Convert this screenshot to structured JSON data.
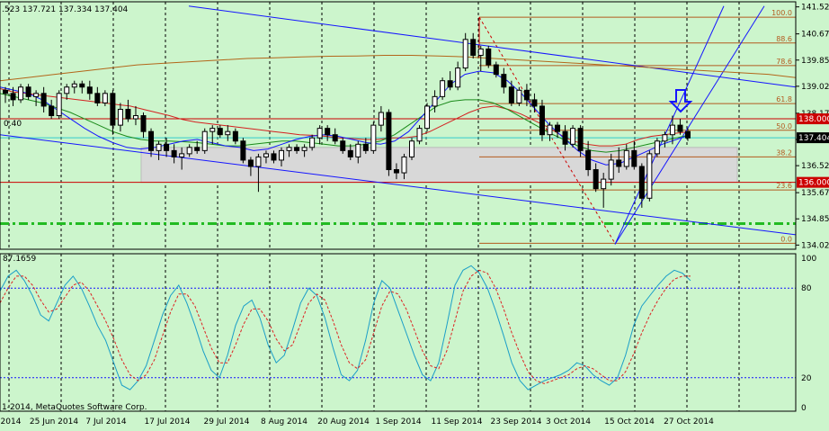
{
  "header": {
    "ohlc_text": ".523 137.721 137.334 137.404",
    "sub_label": "0.40"
  },
  "footer": {
    "copyright": "1-2014, MetaQuotes Software Corp.",
    "osc_value": "87.1659"
  },
  "colors": {
    "background": "#ccf5cc",
    "bull_candle": "#ffffff",
    "bear_candle": "#000000",
    "ma_red": "#d42020",
    "ma_green": "#1a8a1a",
    "ma_blue": "#1515ff",
    "ma_brown": "#b3661a",
    "channel_blue": "#1515ff",
    "fibo": "#b35a1f",
    "level_red": "#cc0000",
    "dash_green": "#22bb22",
    "stoch_main": "#1a9ec8",
    "stoch_signal": "#dd2222",
    "zone": "#d8d8d8",
    "arrow": "#1515ff"
  },
  "chart_data": [
    {
      "type": "candlestick",
      "symbol_note": "price panel",
      "x_ticks": [
        "2014",
        "25 Jun 2014",
        "7 Jul 2014",
        "17 Jul 2014",
        "29 Jul 2014",
        "8 Aug 2014",
        "20 Aug 2014",
        "1 Sep 2014",
        "11 Sep 2014",
        "23 Sep 2014",
        "3 Oct 2014",
        "15 Oct 2014",
        "27 Oct 2014"
      ],
      "y_ticks": [
        141.525,
        140.675,
        139.85,
        139.025,
        138.175,
        137.35,
        136.525,
        135.675,
        134.85,
        134.025
      ],
      "ylim": [
        133.95,
        141.6
      ],
      "current_price": 137.404,
      "key_levels": [
        138.0,
        136.0
      ],
      "support_dashed": 134.7,
      "fibonacci": {
        "levels": [
          "100.0",
          "88.6",
          "78.6",
          "61.8",
          "50.0",
          "38.2",
          "23.6",
          "0.0"
        ],
        "ratios": [
          1.0,
          0.886,
          0.786,
          0.618,
          0.5,
          0.382,
          0.236,
          0.0
        ],
        "high": 141.2,
        "low": 134.08
      },
      "zone": [
        136.0,
        137.1
      ],
      "candles": [
        [
          138.9,
          139.0,
          138.5,
          138.8
        ],
        [
          138.8,
          139.0,
          138.4,
          138.6
        ],
        [
          138.6,
          139.1,
          138.5,
          139.0
        ],
        [
          139.0,
          139.1,
          138.6,
          138.7
        ],
        [
          138.7,
          138.9,
          138.4,
          138.8
        ],
        [
          138.8,
          139.0,
          138.2,
          138.4
        ],
        [
          138.4,
          138.6,
          138.0,
          138.1
        ],
        [
          138.1,
          138.9,
          138.0,
          138.8
        ],
        [
          138.8,
          139.1,
          138.6,
          139.0
        ],
        [
          139.0,
          139.2,
          138.8,
          139.1
        ],
        [
          139.1,
          139.2,
          138.8,
          139.0
        ],
        [
          139.0,
          139.2,
          138.6,
          138.8
        ],
        [
          138.8,
          139.0,
          138.4,
          138.5
        ],
        [
          138.5,
          138.9,
          138.4,
          138.8
        ],
        [
          138.8,
          138.9,
          137.5,
          137.8
        ],
        [
          137.8,
          138.5,
          137.6,
          138.3
        ],
        [
          138.3,
          138.6,
          137.9,
          138.0
        ],
        [
          138.0,
          138.4,
          137.8,
          138.1
        ],
        [
          138.1,
          138.2,
          137.4,
          137.6
        ],
        [
          137.6,
          137.7,
          136.8,
          137.0
        ],
        [
          137.0,
          137.3,
          136.7,
          137.2
        ],
        [
          137.2,
          137.4,
          136.8,
          137.0
        ],
        [
          137.0,
          137.2,
          136.6,
          136.8
        ],
        [
          136.8,
          137.1,
          136.4,
          136.9
        ],
        [
          136.9,
          137.2,
          136.8,
          137.1
        ],
        [
          137.1,
          137.3,
          136.9,
          137.0
        ],
        [
          137.0,
          137.7,
          136.9,
          137.6
        ],
        [
          137.6,
          137.8,
          137.2,
          137.7
        ],
        [
          137.7,
          137.8,
          137.4,
          137.5
        ],
        [
          137.5,
          137.8,
          137.3,
          137.6
        ],
        [
          137.6,
          137.7,
          137.2,
          137.3
        ],
        [
          137.3,
          137.4,
          136.6,
          136.7
        ],
        [
          136.7,
          136.8,
          136.2,
          136.5
        ],
        [
          136.5,
          136.9,
          135.7,
          136.8
        ],
        [
          136.8,
          137.0,
          136.6,
          136.9
        ],
        [
          136.9,
          137.0,
          136.6,
          136.7
        ],
        [
          136.7,
          137.1,
          136.5,
          137.0
        ],
        [
          137.0,
          137.2,
          136.8,
          137.1
        ],
        [
          137.1,
          137.2,
          136.9,
          137.0
        ],
        [
          137.0,
          137.2,
          136.8,
          137.1
        ],
        [
          137.1,
          137.5,
          137.0,
          137.4
        ],
        [
          137.4,
          137.8,
          137.2,
          137.7
        ],
        [
          137.7,
          137.8,
          137.3,
          137.5
        ],
        [
          137.5,
          137.7,
          137.2,
          137.3
        ],
        [
          137.3,
          137.4,
          136.9,
          137.0
        ],
        [
          137.0,
          137.2,
          136.7,
          136.8
        ],
        [
          136.8,
          137.3,
          136.6,
          137.2
        ],
        [
          137.2,
          137.4,
          136.9,
          137.0
        ],
        [
          137.0,
          137.9,
          136.9,
          137.8
        ],
        [
          137.8,
          138.4,
          137.6,
          138.2
        ],
        [
          138.2,
          138.3,
          136.2,
          136.4
        ],
        [
          136.4,
          136.6,
          136.1,
          136.3
        ],
        [
          136.3,
          136.9,
          136.1,
          136.8
        ],
        [
          136.8,
          137.4,
          136.7,
          137.3
        ],
        [
          137.3,
          137.8,
          137.2,
          137.7
        ],
        [
          137.7,
          138.5,
          137.6,
          138.4
        ],
        [
          138.4,
          138.9,
          138.2,
          138.7
        ],
        [
          138.7,
          139.3,
          138.6,
          139.2
        ],
        [
          139.2,
          139.5,
          138.9,
          139.0
        ],
        [
          139.0,
          139.8,
          138.9,
          139.6
        ],
        [
          139.6,
          140.7,
          139.5,
          140.5
        ],
        [
          140.5,
          140.7,
          139.9,
          140.0
        ],
        [
          140.0,
          140.3,
          139.5,
          140.2
        ],
        [
          140.2,
          140.3,
          139.6,
          139.7
        ],
        [
          139.7,
          139.8,
          139.3,
          139.4
        ],
        [
          139.4,
          139.6,
          138.8,
          139.0
        ],
        [
          139.0,
          139.2,
          138.4,
          138.5
        ],
        [
          138.5,
          139.0,
          138.4,
          138.9
        ],
        [
          138.9,
          139.1,
          138.4,
          138.6
        ],
        [
          138.6,
          138.8,
          138.2,
          138.4
        ],
        [
          138.4,
          138.6,
          137.3,
          137.5
        ],
        [
          137.5,
          137.9,
          137.3,
          137.8
        ],
        [
          137.8,
          137.9,
          137.4,
          137.6
        ],
        [
          137.6,
          137.8,
          137.0,
          137.2
        ],
        [
          137.2,
          137.8,
          137.1,
          137.7
        ],
        [
          137.7,
          137.8,
          136.8,
          137.0
        ],
        [
          137.0,
          137.3,
          136.2,
          136.4
        ],
        [
          136.4,
          136.6,
          135.7,
          135.8
        ],
        [
          135.8,
          136.3,
          135.2,
          136.1
        ],
        [
          136.1,
          136.9,
          135.9,
          136.7
        ],
        [
          136.7,
          137.1,
          136.3,
          136.5
        ],
        [
          136.5,
          137.2,
          136.4,
          137.0
        ],
        [
          137.0,
          137.3,
          136.4,
          136.5
        ],
        [
          136.5,
          136.6,
          135.2,
          135.5
        ],
        [
          135.5,
          137.0,
          135.4,
          136.9
        ],
        [
          136.9,
          137.4,
          136.8,
          137.3
        ],
        [
          137.3,
          137.6,
          137.1,
          137.5
        ],
        [
          137.5,
          138.1,
          137.2,
          137.8
        ],
        [
          137.8,
          138.0,
          137.5,
          137.6
        ],
        [
          137.6,
          137.7,
          137.3,
          137.4
        ]
      ],
      "moving_averages": {
        "red": [
          138.95,
          138.85,
          138.8,
          138.75,
          138.7,
          138.65,
          138.6,
          138.55,
          138.5,
          138.45,
          138.4,
          138.3,
          138.2,
          138.1,
          137.98,
          137.9,
          137.85,
          137.8,
          137.75,
          137.7,
          137.65,
          137.6,
          137.55,
          137.5,
          137.48,
          137.45,
          137.4,
          137.38,
          137.35,
          137.35,
          137.4,
          137.4,
          137.45,
          137.6,
          137.8,
          138.0,
          138.2,
          138.35,
          138.4,
          138.3,
          138.15,
          137.95,
          137.75,
          137.5,
          137.3,
          137.2,
          137.15,
          137.15,
          137.2,
          137.35,
          137.45,
          137.5,
          137.55,
          137.6
        ],
        "green": [
          138.8,
          138.7,
          138.6,
          138.5,
          138.35,
          138.2,
          138.0,
          137.8,
          137.6,
          137.45,
          137.35,
          137.3,
          137.3,
          137.28,
          137.25,
          137.2,
          137.15,
          137.15,
          137.2,
          137.25,
          137.3,
          137.3,
          137.25,
          137.2,
          137.15,
          137.15,
          137.2,
          137.3,
          137.5,
          137.8,
          138.1,
          138.4,
          138.55,
          138.6,
          138.6,
          138.5,
          138.3,
          138.05,
          137.8,
          137.55,
          137.35,
          137.15,
          137.0,
          136.95,
          137.0,
          137.1,
          137.2,
          137.3,
          137.4,
          137.5
        ],
        "blue": [
          139.0,
          138.9,
          138.8,
          138.6,
          138.3,
          138.0,
          137.7,
          137.45,
          137.25,
          137.1,
          137.05,
          137.1,
          137.2,
          137.3,
          137.35,
          137.25,
          137.15,
          137.1,
          137.0,
          137.05,
          137.2,
          137.35,
          137.45,
          137.5,
          137.45,
          137.35,
          137.25,
          137.2,
          137.3,
          137.6,
          138.1,
          138.6,
          139.1,
          139.4,
          139.5,
          139.45,
          139.2,
          138.8,
          138.3,
          137.8,
          137.4,
          137.0,
          136.7,
          136.55,
          136.6,
          136.8,
          137.0,
          137.2,
          137.35,
          137.5
        ],
        "brown": [
          139.2,
          139.3,
          139.4,
          139.5,
          139.6,
          139.7,
          139.75,
          139.8,
          139.85,
          139.9,
          139.92,
          139.95,
          139.97,
          139.98,
          140.0,
          140.0,
          139.98,
          139.95,
          139.9,
          139.85,
          139.8,
          139.75,
          139.7,
          139.65,
          139.6,
          139.55,
          139.5,
          139.45,
          139.4,
          139.3
        ]
      }
    },
    {
      "type": "line",
      "symbol_note": "stochastic oscillator",
      "y_ticks": [
        100,
        80,
        20,
        0
      ],
      "ylim": [
        0,
        100
      ],
      "levels": [
        80,
        20
      ],
      "series": [
        {
          "values": [
            78,
            88,
            92,
            85,
            75,
            62,
            58,
            70,
            82,
            88,
            80,
            68,
            55,
            45,
            30,
            15,
            12,
            18,
            28,
            45,
            62,
            75,
            82,
            70,
            55,
            38,
            25,
            20,
            35,
            55,
            68,
            72,
            60,
            42,
            30,
            35,
            52,
            70,
            80,
            75,
            60,
            40,
            22,
            18,
            25,
            45,
            70,
            85,
            80,
            65,
            50,
            35,
            22,
            18,
            30,
            55,
            82,
            92,
            95,
            90,
            80,
            65,
            48,
            30,
            18,
            12,
            15,
            18,
            20,
            22,
            25,
            30,
            28,
            22,
            18,
            15,
            20,
            35,
            55,
            68,
            75,
            82,
            88,
            92,
            90,
            85
          ]
        },
        {
          "values": [
            70,
            80,
            88,
            88,
            82,
            72,
            64,
            66,
            74,
            82,
            84,
            78,
            68,
            58,
            46,
            32,
            22,
            18,
            22,
            32,
            48,
            64,
            76,
            76,
            68,
            54,
            40,
            30,
            30,
            42,
            56,
            66,
            66,
            58,
            46,
            38,
            42,
            56,
            70,
            76,
            72,
            58,
            42,
            30,
            26,
            32,
            50,
            68,
            78,
            76,
            66,
            52,
            38,
            28,
            26,
            38,
            58,
            78,
            88,
            92,
            90,
            80,
            66,
            50,
            36,
            24,
            18,
            16,
            18,
            20,
            22,
            26,
            28,
            26,
            22,
            18,
            18,
            24,
            36,
            50,
            62,
            72,
            80,
            86,
            88,
            88
          ]
        }
      ]
    }
  ]
}
